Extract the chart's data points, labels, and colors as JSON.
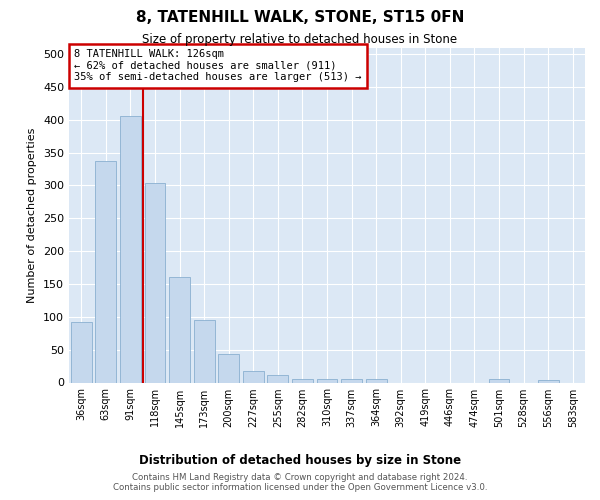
{
  "title": "8, TATENHILL WALK, STONE, ST15 0FN",
  "subtitle": "Size of property relative to detached houses in Stone",
  "xlabel": "Distribution of detached houses by size in Stone",
  "ylabel": "Number of detached properties",
  "categories": [
    "36sqm",
    "63sqm",
    "91sqm",
    "118sqm",
    "145sqm",
    "173sqm",
    "200sqm",
    "227sqm",
    "255sqm",
    "282sqm",
    "310sqm",
    "337sqm",
    "364sqm",
    "392sqm",
    "419sqm",
    "446sqm",
    "474sqm",
    "501sqm",
    "528sqm",
    "556sqm",
    "583sqm"
  ],
  "values": [
    92,
    337,
    406,
    303,
    160,
    95,
    43,
    17,
    11,
    6,
    5,
    5,
    5,
    0,
    0,
    0,
    0,
    5,
    0,
    4,
    0
  ],
  "bar_color": "#c5d8ed",
  "bar_edge_color": "#8ab0d0",
  "background_color": "#dce8f5",
  "grid_color": "#ffffff",
  "property_line_color": "#cc0000",
  "annotation_text": "8 TATENHILL WALK: 126sqm\n← 62% of detached houses are smaller (911)\n35% of semi-detached houses are larger (513) →",
  "annotation_box_color": "#cc0000",
  "footnote": "Contains HM Land Registry data © Crown copyright and database right 2024.\nContains public sector information licensed under the Open Government Licence v3.0.",
  "ylim": [
    0,
    510
  ],
  "yticks": [
    0,
    50,
    100,
    150,
    200,
    250,
    300,
    350,
    400,
    450,
    500
  ]
}
